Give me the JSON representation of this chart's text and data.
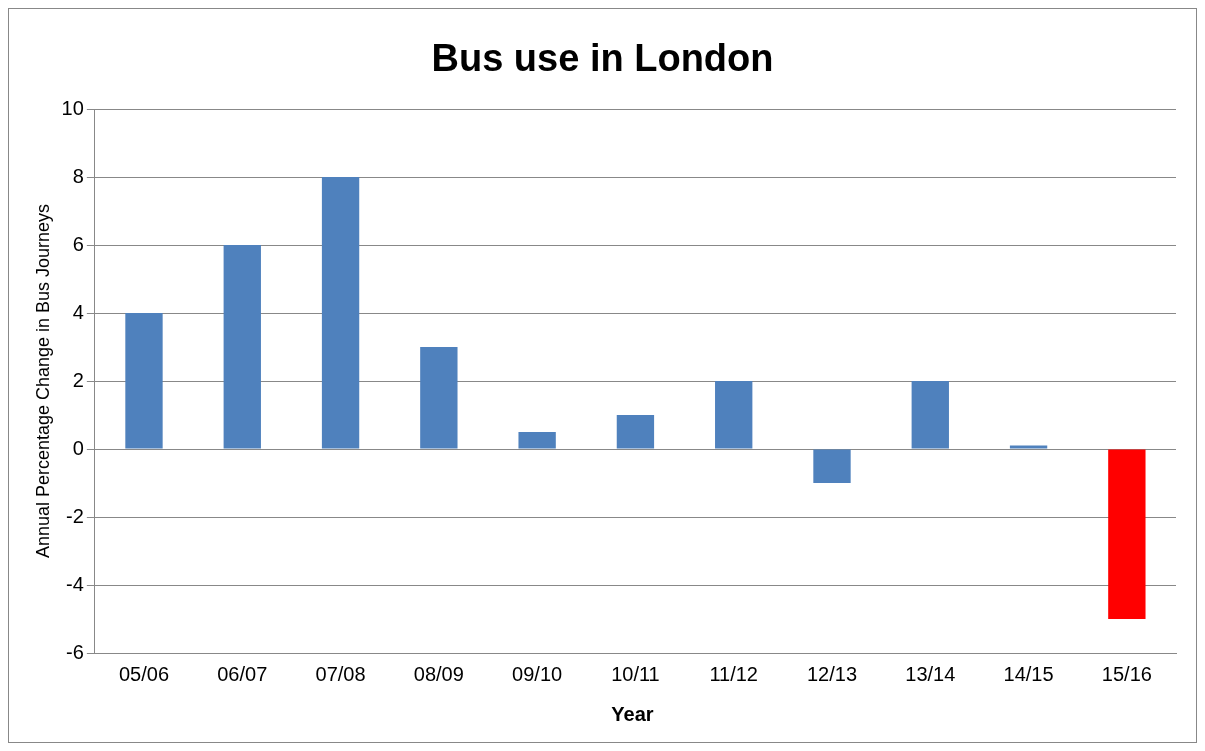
{
  "chart_data": {
    "type": "bar",
    "title": "Bus use in London",
    "xlabel": "Year",
    "ylabel": "Annual Percentage Change in Bus Journeys",
    "categories": [
      "05/06",
      "06/07",
      "07/08",
      "08/09",
      "09/10",
      "10/11",
      "11/12",
      "12/13",
      "13/14",
      "14/15",
      "15/16"
    ],
    "values": [
      4,
      6,
      8,
      3,
      0.5,
      1,
      2,
      -1,
      2,
      0.1,
      -5
    ],
    "colors": [
      "#4f81bd",
      "#4f81bd",
      "#4f81bd",
      "#4f81bd",
      "#4f81bd",
      "#4f81bd",
      "#4f81bd",
      "#4f81bd",
      "#4f81bd",
      "#4f81bd",
      "#ff0000"
    ],
    "ylim": [
      -6,
      10
    ],
    "yticks": [
      -6,
      -4,
      -2,
      0,
      2,
      4,
      6,
      8,
      10
    ],
    "grid": "y",
    "legend": false
  }
}
